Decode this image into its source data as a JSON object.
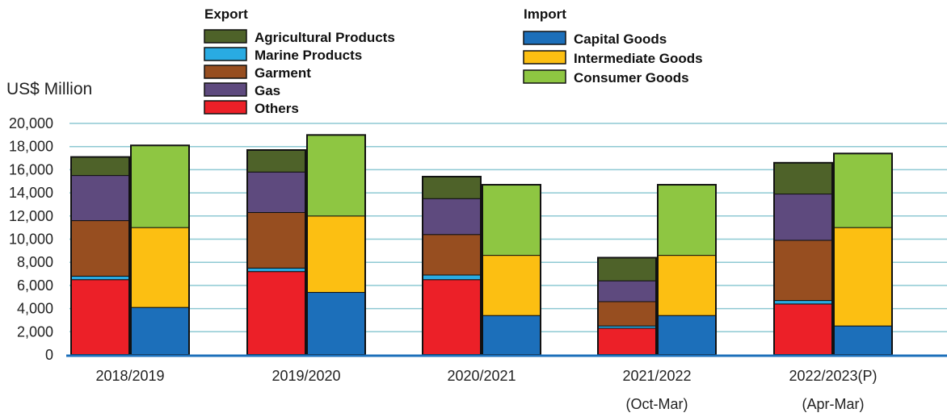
{
  "chart_data": {
    "type": "bar",
    "stacked": true,
    "grouped": true,
    "ylabel": "US$ Million",
    "ylim": [
      0,
      20000
    ],
    "yticks": [
      0,
      2000,
      4000,
      6000,
      8000,
      10000,
      12000,
      14000,
      16000,
      18000,
      20000
    ],
    "ytick_labels": [
      "0",
      "2,000",
      "4,000",
      "6,000",
      "8,000",
      "10,000",
      "12,000",
      "14,000",
      "16,000",
      "18,000",
      "20,000"
    ],
    "grid": true,
    "categories": [
      {
        "line1": "2018/2019",
        "line2": ""
      },
      {
        "line1": "2019/2020",
        "line2": ""
      },
      {
        "line1": "2020/2021",
        "line2": ""
      },
      {
        "line1": "2021/2022",
        "line2": "(Oct-Mar)"
      },
      {
        "line1": "2022/2023(P)",
        "line2": "(Apr-Mar)"
      }
    ],
    "groups": [
      {
        "name": "Export",
        "series": [
          {
            "name": "Others",
            "color": "#ec2028",
            "values": [
              6500,
              7200,
              6500,
              2300,
              4400
            ]
          },
          {
            "name": "Marine Products",
            "color": "#29abe2",
            "values": [
              300,
              300,
              400,
              200,
              300
            ]
          },
          {
            "name": "Garment",
            "color": "#974e20",
            "values": [
              4800,
              4800,
              3500,
              2100,
              5200
            ]
          },
          {
            "name": "Gas",
            "color": "#5e4a7e",
            "values": [
              3900,
              3500,
              3100,
              1800,
              4000
            ]
          },
          {
            "name": "Agricultural  Products",
            "color": "#4e6229",
            "values": [
              1600,
              1900,
              1900,
              2000,
              2700
            ]
          }
        ]
      },
      {
        "name": "Import",
        "series": [
          {
            "name": "Capital  Goods",
            "color": "#1c6fba",
            "values": [
              4100,
              5400,
              3400,
              3400,
              2500
            ]
          },
          {
            "name": "Intermediate  Goods",
            "color": "#fcbf12",
            "values": [
              6900,
              6600,
              5200,
              5200,
              8500
            ]
          },
          {
            "name": "Consumer Goods",
            "color": "#8ec642",
            "values": [
              7100,
              7000,
              6100,
              6100,
              6400
            ]
          }
        ]
      }
    ],
    "legend": {
      "export_title": "Export",
      "import_title": "Import",
      "export_order": [
        "Agricultural  Products",
        "Marine Products",
        "Garment",
        "Gas",
        "Others"
      ],
      "import_order": [
        "Capital  Goods",
        "Intermediate  Goods",
        "Consumer Goods"
      ]
    },
    "colors": {
      "gridline": "#8ec9d3",
      "axis": "#1c6fba",
      "bar_outline": "#111111"
    }
  }
}
